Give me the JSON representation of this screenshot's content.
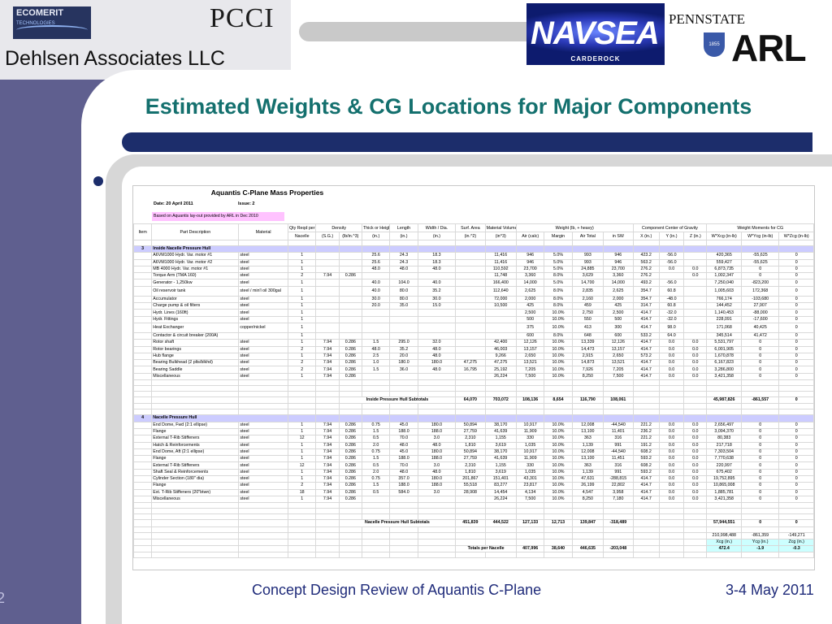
{
  "logos": {
    "ecomerit_name": "ECOMERIT",
    "ecomerit_sub": "TECHNOLOGIES",
    "pcci": "PCCI",
    "navsea": "NAVSEA",
    "navsea_sub": "CARDEROCK",
    "pennstate": "PENNSTATE",
    "shield_year": "1855",
    "arl": "ARL"
  },
  "company": "Dehlsen Associates LLC",
  "title": "Estimated Weights & CG Locations for Major Components",
  "footer": {
    "left": "Concept Design Review of Aquantis C-Plane",
    "right": "3-4 May 2011",
    "slide_number": "2"
  },
  "sheet": {
    "title": "Aquantis C-Plane Mass Properties",
    "date": "Date:  20 April 2011",
    "issue": "Issue:  2",
    "note": "Based on Aquantis lay-out provided by ARL in Dec 2010",
    "header1": [
      "Item",
      "Part Description",
      "Material",
      "Qty Reqd per",
      "Density",
      "Thick or Height",
      "Length",
      "Width / Dia.",
      "Surf. Area",
      "Material Volume",
      "Weight (lb, + heavy)",
      "Component Center of Gravity",
      "Weight Moments for CG"
    ],
    "header2": [
      "",
      "",
      "",
      "Nacelle",
      "(S.G.)",
      "(lb/in.^3)",
      "(in.)",
      "(in.)",
      "(in.)",
      "(in.^2)",
      "(in^3)",
      "Air (calc)",
      "Margin",
      "Air Total",
      "in SW",
      "X (in.)",
      "Y (in.)",
      "Z (in.)",
      "W*Xcg (in-lb)",
      "W*Ycg (in-lb)",
      "W*Zcg (in-lb)"
    ],
    "section3": {
      "item": "3",
      "name": "Inside Nacelle Pressure Hull"
    },
    "rows3": [
      [
        "",
        "A6VM1000 Hydr. Var. motor #1",
        "steel",
        "1",
        "",
        "",
        "25.6",
        "24.3",
        "18.3",
        "",
        "11,416",
        "946",
        "5.0%",
        "993",
        "946",
        "423.2",
        "-56.0",
        "",
        "420,365",
        "-55,625",
        "0"
      ],
      [
        "",
        "A6VM1000 Hydr. Var. motor #2",
        "steel",
        "1",
        "",
        "",
        "25.6",
        "24.3",
        "18.3",
        "",
        "11,416",
        "946",
        "5.0%",
        "993",
        "946",
        "563.2",
        "-56.0",
        "",
        "559,427",
        "-55,625",
        "0"
      ],
      [
        "",
        "MB 4000 Hydr. Var. motor #1",
        "steel",
        "1",
        "",
        "",
        "48.0",
        "48.0",
        "48.0",
        "",
        "110,592",
        "23,700",
        "5.0%",
        "24,885",
        "23,700",
        "276.2",
        "0.0",
        "0.0",
        "6,873,735",
        "0",
        "0"
      ],
      [
        "",
        "Torque Arm (TMA 160)",
        "steel",
        "2",
        "7.94",
        "0.286",
        "",
        "",
        "",
        "",
        "11,748",
        "3,360",
        "8.0%",
        "3,629",
        "3,360",
        "276.2",
        "",
        "0.0",
        "1,002,347",
        "0",
        "0"
      ],
      [
        "",
        "Generator - 1,250kw",
        "steel",
        "1",
        "",
        "",
        "40.0",
        "104.0",
        "40.0",
        "",
        "166,400",
        "14,000",
        "5.0%",
        "14,700",
        "14,000",
        "493.2",
        "-56.0",
        "",
        "7,250,040",
        "-823,200",
        "0"
      ],
      [
        "",
        "Oil reservoir tank",
        "steel / min'l oil 300gal",
        "1",
        "",
        "",
        "40.0",
        "80.0",
        "35.2",
        "",
        "112,640",
        "2,625",
        "8.0%",
        "2,835",
        "2,625",
        "354.7",
        "60.8",
        "",
        "1,005,603",
        "172,368",
        "0"
      ],
      [
        "",
        "Accumulator",
        "steel",
        "1",
        "",
        "",
        "30.0",
        "80.0",
        "30.0",
        "",
        "72,000",
        "2,000",
        "8.0%",
        "2,160",
        "2,000",
        "354.7",
        "-48.0",
        "",
        "766,174",
        "-103,680",
        "0"
      ],
      [
        "",
        "Charge pump & oil filters",
        "steel",
        "1",
        "",
        "",
        "20.0",
        "35.0",
        "15.0",
        "",
        "10,500",
        "425",
        "8.0%",
        "459",
        "425",
        "314.7",
        "60.8",
        "",
        "144,452",
        "27,907",
        "0"
      ],
      [
        "",
        "Hydr. Lines (160ft)",
        "steel",
        "1",
        "",
        "",
        "",
        "",
        "",
        "",
        "",
        "2,500",
        "10.0%",
        "2,750",
        "2,500",
        "414.7",
        "-32.0",
        "",
        "1,140,453",
        "-88,000",
        "0"
      ],
      [
        "",
        "Hydr. Fittings",
        "steel",
        "1",
        "",
        "",
        "",
        "",
        "",
        "",
        "",
        "500",
        "10.0%",
        "550",
        "500",
        "414.7",
        "-32.0",
        "",
        "228,091",
        "-17,600",
        "0"
      ],
      [
        "",
        "Heat Exchanger",
        "copper/nickel",
        "1",
        "",
        "",
        "",
        "",
        "",
        "",
        "",
        "375",
        "10.0%",
        "413",
        "300",
        "414.7",
        "98.0",
        "",
        "171,068",
        "40,425",
        "0"
      ],
      [
        "",
        "Contactor & circuit breaker (200A)",
        "",
        "1",
        "",
        "",
        "",
        "",
        "",
        "",
        "",
        "600",
        "8.0%",
        "648",
        "600",
        "533.2",
        "64.0",
        "",
        "345,514",
        "41,472",
        "0"
      ],
      [
        "",
        "Rotor shaft",
        "steel",
        "1",
        "7.94",
        "0.286",
        "1.5",
        "295.0",
        "32.0",
        "",
        "42,400",
        "12,126",
        "10.0%",
        "13,339",
        "12,126",
        "414.7",
        "0.0",
        "0.0",
        "5,531,797",
        "0",
        "0"
      ],
      [
        "",
        "Rotor bearings",
        "steel",
        "2",
        "7.94",
        "0.286",
        "48.0",
        "35.2",
        "48.0",
        "",
        "46,003",
        "13,157",
        "10.0%",
        "14,473",
        "13,157",
        "414.7",
        "0.0",
        "0.0",
        "6,001,905",
        "0",
        "0"
      ],
      [
        "",
        "Hub flange",
        "steel",
        "1",
        "7.94",
        "0.286",
        "2.5",
        "20.0",
        "48.0",
        "",
        "9,266",
        "2,650",
        "10.0%",
        "2,915",
        "2,650",
        "573.2",
        "0.0",
        "0.0",
        "1,670,878",
        "0",
        "0"
      ],
      [
        "",
        "Bearing Bulkhead (2 plts/blkhd)",
        "steel",
        "2",
        "7.94",
        "0.286",
        "1.0",
        "180.0",
        "180.0",
        "47,275",
        "47,275",
        "13,521",
        "10.0%",
        "14,873",
        "13,521",
        "414.7",
        "0.0",
        "0.0",
        "6,167,823",
        "0",
        "0"
      ],
      [
        "",
        "Bearing Saddle",
        "steel",
        "2",
        "7.94",
        "0.286",
        "1.5",
        "36.0",
        "48.0",
        "16,795",
        "25,192",
        "7,205",
        "10.0%",
        "7,926",
        "7,205",
        "414.7",
        "0.0",
        "0.0",
        "3,286,800",
        "0",
        "0"
      ],
      [
        "",
        "Miscellaneous",
        "steel",
        "1",
        "7.94",
        "0.286",
        "",
        "",
        "",
        "",
        "26,224",
        "7,500",
        "10.0%",
        "8,250",
        "7,500",
        "414.7",
        "0.0",
        "0.0",
        "3,421,358",
        "0",
        "0"
      ]
    ],
    "subtotal3": {
      "label": "Inside Pressure Hull Subtotals",
      "surf": "64,070",
      "vol": "703,072",
      "air": "108,136",
      "margin": "8,654",
      "air_total": "116,790",
      "sw": "108,061",
      "wx": "45,987,826",
      "wy": "-861,557",
      "wz": "0"
    },
    "section4": {
      "item": "4",
      "name": "Nacelle Pressure Hull"
    },
    "rows4": [
      [
        "",
        "End Dome, Fwd (2:1 ellipse)",
        "steel",
        "1",
        "7.94",
        "0.286",
        "0.75",
        "45.0",
        "180.0",
        "50,894",
        "38,170",
        "10,917",
        "10.0%",
        "12,008",
        "-44,540",
        "221.2",
        "0.0",
        "0.0",
        "2,656,497",
        "0",
        "0"
      ],
      [
        "",
        "Flange",
        "steel",
        "1",
        "7.94",
        "0.286",
        "1.5",
        "188.0",
        "188.0",
        "27,759",
        "41,639",
        "11,909",
        "10.0%",
        "13,100",
        "11,401",
        "236.2",
        "0.0",
        "0.0",
        "3,094,370",
        "0",
        "0"
      ],
      [
        "",
        "External T-Rib Stiffeners",
        "steel",
        "12",
        "7.94",
        "0.286",
        "0.5",
        "70.0",
        "3.0",
        "2,310",
        "1,155",
        "330",
        "10.0%",
        "363",
        "316",
        "221.2",
        "0.0",
        "0.0",
        "80,383",
        "0",
        "0"
      ],
      [
        "",
        "Hatch & Reinforcements",
        "steel",
        "1",
        "7.94",
        "0.286",
        "2.0",
        "48.0",
        "48.0",
        "1,810",
        "3,619",
        "1,035",
        "10.0%",
        "1,139",
        "991",
        "191.2",
        "0.0",
        "0.0",
        "217,718",
        "0",
        "0"
      ],
      [
        "",
        "End Dome, Aft (2:1 ellipse)",
        "steel",
        "1",
        "7.94",
        "0.286",
        "0.75",
        "45.0",
        "180.0",
        "50,894",
        "38,170",
        "10,917",
        "10.0%",
        "12,008",
        "-44,540",
        "608.2",
        "0.0",
        "0.0",
        "7,303,504",
        "0",
        "0"
      ],
      [
        "",
        "Flange",
        "steel",
        "1",
        "7.94",
        "0.286",
        "1.5",
        "188.0",
        "188.0",
        "27,759",
        "41,639",
        "11,909",
        "10.0%",
        "13,100",
        "11,451",
        "593.2",
        "0.0",
        "0.0",
        "7,770,638",
        "0",
        "0"
      ],
      [
        "",
        "External T-Rib Stiffeners",
        "steel",
        "12",
        "7.94",
        "0.286",
        "0.5",
        "70.0",
        "3.0",
        "2,310",
        "1,155",
        "330",
        "10.0%",
        "363",
        "316",
        "608.2",
        "0.0",
        "0.0",
        "220,997",
        "0",
        "0"
      ],
      [
        "",
        "Shaft Seal & Reinforcements",
        "steel",
        "1",
        "7.94",
        "0.286",
        "2.0",
        "48.0",
        "48.0",
        "1,810",
        "3,619",
        "1,035",
        "10.0%",
        "1,139",
        "991",
        "593.2",
        "0.0",
        "0.0",
        "675,402",
        "0",
        "0"
      ],
      [
        "",
        "Cylinder Section (180\" dia)",
        "steel",
        "1",
        "7.94",
        "0.286",
        "0.75",
        "357.0",
        "180.0",
        "201,867",
        "151,401",
        "43,301",
        "10.0%",
        "47,631",
        "-288,815",
        "414.7",
        "0.0",
        "0.0",
        "19,752,895",
        "0",
        "0"
      ],
      [
        "",
        "Flange",
        "steel",
        "2",
        "7.94",
        "0.286",
        "1.5",
        "188.0",
        "188.0",
        "55,518",
        "83,277",
        "23,817",
        "10.0%",
        "26,199",
        "22,802",
        "414.7",
        "0.0",
        "0.0",
        "10,865,008",
        "0",
        "0"
      ],
      [
        "",
        "Ext. T-Rib Stiffeners (20\"btwn)",
        "steel",
        "18",
        "7.94",
        "0.286",
        "0.5",
        "584.0",
        "3.0",
        "28,908",
        "14,454",
        "4,134",
        "10.0%",
        "4,547",
        "3,958",
        "414.7",
        "0.0",
        "0.0",
        "1,885,781",
        "0",
        "0"
      ],
      [
        "",
        "Miscellaneous",
        "steel",
        "1",
        "7.94",
        "0.286",
        "",
        "",
        "",
        "",
        "26,224",
        "7,500",
        "10.0%",
        "8,250",
        "7,180",
        "414.7",
        "0.0",
        "0.0",
        "3,421,358",
        "0",
        "0"
      ]
    ],
    "subtotal4": {
      "label": "Nacelle Pressure Hull Subtotals",
      "surf": "451,839",
      "vol": "444,522",
      "air": "127,133",
      "margin": "12,713",
      "air_total": "139,847",
      "sw": "-318,489",
      "wx": "57,944,551",
      "wy": "0",
      "wz": "0"
    },
    "totals": {
      "wx": "210,998,488",
      "wy": "-861,359",
      "wz": "-149,271",
      "xcg_label": "Xcg (in.)",
      "ycg_label": "Ycg (in.)",
      "zcg_label": "Zcg (in.)",
      "xcg": "472.4",
      "ycg": "-1.9",
      "zcg": "-0.3",
      "label": "Totals per Nacelle",
      "air": "407,996",
      "margin": "38,640",
      "air_total": "446,635",
      "sw": "-203,048"
    }
  }
}
